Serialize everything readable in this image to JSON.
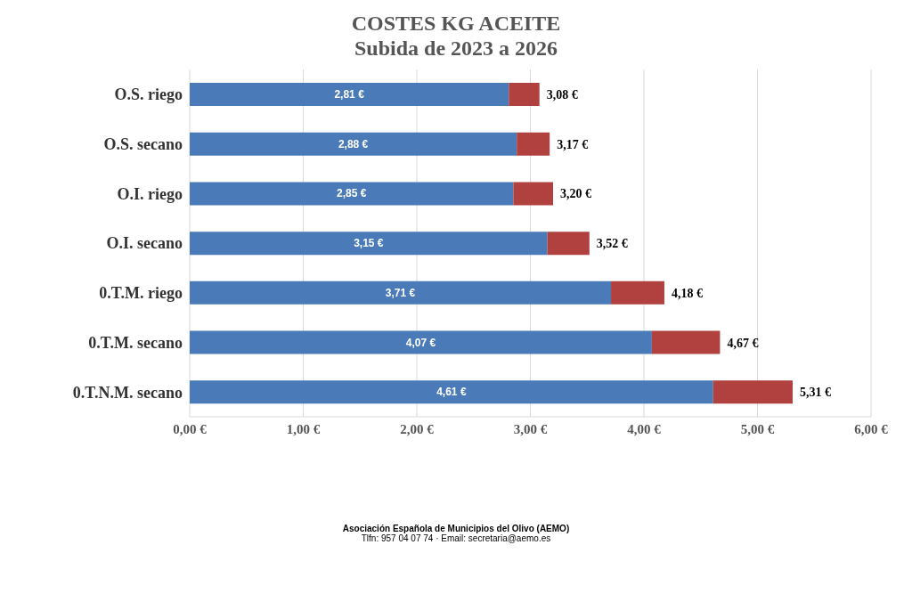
{
  "chart_data": {
    "type": "bar",
    "orientation": "horizontal",
    "stacked": true,
    "title": "COSTES KG ACEITE",
    "subtitle": "Subida de 2023 a 2026",
    "categories": [
      "O.S. riego",
      "O.S. secano",
      "O.I. riego",
      "O.I. secano",
      "0.T.M. riego",
      "0.T.M. secano",
      "0.T.N.M. secano"
    ],
    "series": [
      {
        "color": "#4a7ab8",
        "values": [
          2.81,
          2.88,
          2.85,
          3.15,
          3.71,
          4.07,
          4.61
        ],
        "value_labels": [
          "2,81 €",
          "2,88 €",
          "2,85 €",
          "3,15 €",
          "3,71 €",
          "4,07 €",
          "4,61 €"
        ]
      },
      {
        "color": "#b0413e",
        "values": [
          0.27,
          0.29,
          0.35,
          0.37,
          0.47,
          0.6,
          0.7
        ]
      }
    ],
    "totals": [
      "3,08 €",
      "3,17 €",
      "3,20 €",
      "3,52 €",
      "4,18 €",
      "4,67 €",
      "5,31 €"
    ],
    "xlim": [
      0,
      6
    ],
    "xticks": [
      {
        "value": 0,
        "label": "0,00 €"
      },
      {
        "value": 1,
        "label": "1,00 €"
      },
      {
        "value": 2,
        "label": "2,00 €"
      },
      {
        "value": 3,
        "label": "3,00 €"
      },
      {
        "value": 4,
        "label": "4,00 €"
      },
      {
        "value": 5,
        "label": "5,00 €"
      },
      {
        "value": 6,
        "label": "6,00 €"
      }
    ],
    "grid": "x",
    "legend": false,
    "annotations": [
      "Asociación Española de Municipios del Olivo (AEMO)",
      "Tlfn: 957 04 07 74 ·  Email: secretaria@aemo.es"
    ]
  }
}
